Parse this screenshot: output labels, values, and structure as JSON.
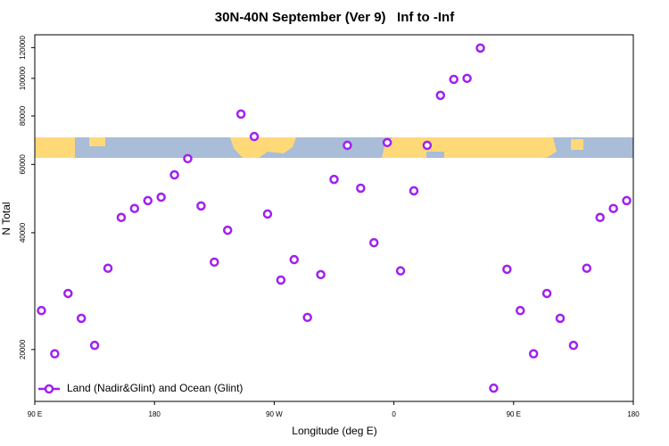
{
  "chart_data": {
    "type": "scatter",
    "title": "30N-40N September (Ver 9)   Inf to -Inf",
    "xlabel": "Longitude (deg E)",
    "ylabel": "N Total",
    "xlim": [
      90,
      540
    ],
    "ylim": [
      14700,
      129500
    ],
    "ylog": true,
    "xticks": [
      {
        "value": 90,
        "label": "90 E"
      },
      {
        "value": 180,
        "label": "180"
      },
      {
        "value": 270,
        "label": "90 W"
      },
      {
        "value": 360,
        "label": "0"
      },
      {
        "value": 450,
        "label": "90 E"
      },
      {
        "value": 540,
        "label": "180"
      }
    ],
    "yticks": [
      20000,
      40000,
      60000,
      80000,
      100000,
      120000
    ],
    "legend": "bottom-left",
    "series": [
      {
        "name": "Land (Nadir&Glint) and Ocean (Glint)",
        "color": "#a020f0",
        "x": [
          95,
          105,
          115,
          125,
          135,
          145,
          155,
          165,
          175,
          185,
          195,
          205,
          215,
          225,
          235,
          245,
          255,
          265,
          275,
          285,
          295,
          305,
          315,
          325,
          335,
          345,
          355,
          365,
          375,
          385,
          395,
          405,
          415,
          425,
          435,
          445,
          455,
          465,
          475,
          485,
          495,
          505,
          515,
          525,
          535
        ],
        "values": [
          25200,
          19500,
          27900,
          24070,
          20500,
          32400,
          43800,
          46200,
          48400,
          49400,
          56400,
          62100,
          46900,
          33600,
          40600,
          80900,
          70800,
          44700,
          30200,
          34100,
          24200,
          31200,
          54900,
          67200,
          52100,
          37700,
          68300,
          31900,
          51300,
          67200,
          90400,
          99400,
          100000,
          119700,
          15900,
          32200,
          25200,
          19500,
          27900,
          24070,
          20500,
          32400,
          43800,
          46200,
          48400
        ]
      }
    ]
  }
}
